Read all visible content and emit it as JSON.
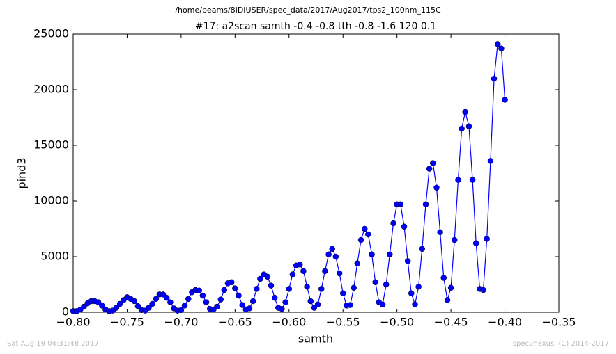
{
  "chart_data": {
    "type": "line",
    "header": "/home/beams/8IDIUSER/spec_data/2017/Aug2017/tps2_100nm_115C",
    "title": "#17: a2scan  samth -0.4 -0.8  tth -0.8 -1.6  120 0.1",
    "xlabel": "samth",
    "ylabel": "pind3",
    "footer_left": "Sat Aug 19 04:31:48 2017",
    "footer_right": "spec2nexus, (C) 2014-2017",
    "color": "#0000ff",
    "markers": true,
    "x": [
      -0.8,
      -0.7967,
      -0.7933,
      -0.79,
      -0.7867,
      -0.7833,
      -0.78,
      -0.7767,
      -0.7733,
      -0.77,
      -0.7667,
      -0.7633,
      -0.76,
      -0.7567,
      -0.7533,
      -0.75,
      -0.7467,
      -0.7433,
      -0.74,
      -0.7367,
      -0.7333,
      -0.73,
      -0.7267,
      -0.7233,
      -0.72,
      -0.7167,
      -0.7133,
      -0.71,
      -0.7067,
      -0.7033,
      -0.7,
      -0.6967,
      -0.6933,
      -0.69,
      -0.6867,
      -0.6833,
      -0.68,
      -0.6767,
      -0.6733,
      -0.67,
      -0.6667,
      -0.6633,
      -0.66,
      -0.6567,
      -0.6533,
      -0.65,
      -0.6467,
      -0.6433,
      -0.64,
      -0.6367,
      -0.6333,
      -0.63,
      -0.6267,
      -0.6233,
      -0.62,
      -0.6167,
      -0.6133,
      -0.61,
      -0.6067,
      -0.6033,
      -0.6,
      -0.5967,
      -0.5933,
      -0.59,
      -0.5867,
      -0.5833,
      -0.58,
      -0.5767,
      -0.5733,
      -0.57,
      -0.5667,
      -0.5633,
      -0.56,
      -0.5567,
      -0.5533,
      -0.55,
      -0.5467,
      -0.5433,
      -0.54,
      -0.5367,
      -0.5333,
      -0.53,
      -0.5267,
      -0.5233,
      -0.52,
      -0.5167,
      -0.5133,
      -0.51,
      -0.5067,
      -0.5033,
      -0.5,
      -0.4967,
      -0.4933,
      -0.49,
      -0.4867,
      -0.4833,
      -0.48,
      -0.4767,
      -0.4733,
      -0.47,
      -0.4667,
      -0.4633,
      -0.46,
      -0.4567,
      -0.4533,
      -0.45,
      -0.4467,
      -0.4433,
      -0.44,
      -0.4367,
      -0.4333,
      -0.43,
      -0.4267,
      -0.4233,
      -0.42,
      -0.4167,
      -0.4133,
      -0.41,
      -0.4067,
      -0.4033,
      -0.4
    ],
    "values": [
      100,
      100,
      250,
      500,
      800,
      1000,
      1000,
      900,
      600,
      250,
      100,
      150,
      400,
      750,
      1100,
      1350,
      1200,
      1000,
      550,
      200,
      150,
      400,
      750,
      1200,
      1600,
      1600,
      1300,
      900,
      350,
      150,
      200,
      600,
      1200,
      1800,
      2000,
      1950,
      1500,
      900,
      300,
      250,
      500,
      1150,
      2000,
      2600,
      2700,
      2150,
      1500,
      650,
      250,
      350,
      1000,
      2100,
      3000,
      3400,
      3200,
      2400,
      1300,
      400,
      300,
      900,
      2100,
      3400,
      4200,
      4300,
      3700,
      2300,
      1000,
      400,
      700,
      2100,
      3700,
      5200,
      5700,
      5000,
      3500,
      1700,
      600,
      650,
      2200,
      4400,
      6500,
      7500,
      7000,
      5200,
      2700,
      900,
      700,
      2500,
      5200,
      8000,
      9700,
      9700,
      7700,
      4600,
      1700,
      700,
      2300,
      5700,
      9700,
      12900,
      13400,
      11200,
      7200,
      3100,
      1100,
      2200,
      6500,
      11900,
      16500,
      18000,
      16700,
      11900,
      6200,
      2100,
      2000,
      6600,
      13600,
      21000,
      24100,
      23700,
      19100
    ],
    "xlim": [
      -0.8,
      -0.35
    ],
    "xticks": [
      {
        "value": -0.8,
        "label": "−0.80"
      },
      {
        "value": -0.75,
        "label": "−0.75"
      },
      {
        "value": -0.7,
        "label": "−0.70"
      },
      {
        "value": -0.65,
        "label": "−0.65"
      },
      {
        "value": -0.6,
        "label": "−0.60"
      },
      {
        "value": -0.55,
        "label": "−0.55"
      },
      {
        "value": -0.5,
        "label": "−0.50"
      },
      {
        "value": -0.45,
        "label": "−0.45"
      },
      {
        "value": -0.4,
        "label": "−0.40"
      },
      {
        "value": -0.35,
        "label": "−0.35"
      }
    ],
    "ylim": [
      0,
      25000
    ],
    "yticks": [
      0,
      5000,
      10000,
      15000,
      20000,
      25000
    ]
  }
}
